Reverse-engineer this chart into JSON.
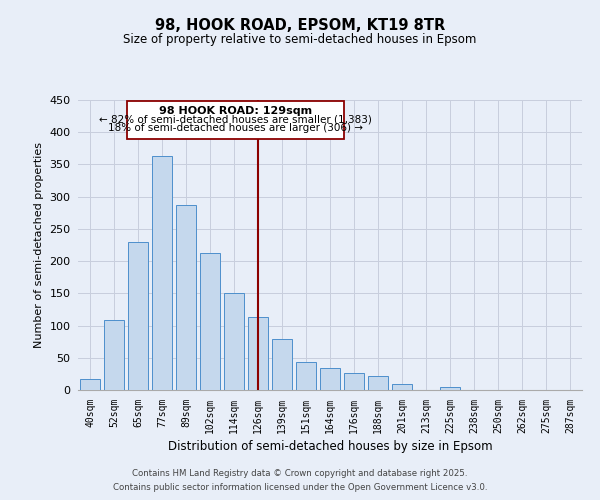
{
  "title": "98, HOOK ROAD, EPSOM, KT19 8TR",
  "subtitle": "Size of property relative to semi-detached houses in Epsom",
  "xlabel": "Distribution of semi-detached houses by size in Epsom",
  "ylabel": "Number of semi-detached properties",
  "bin_labels": [
    "40sqm",
    "52sqm",
    "65sqm",
    "77sqm",
    "89sqm",
    "102sqm",
    "114sqm",
    "126sqm",
    "139sqm",
    "151sqm",
    "164sqm",
    "176sqm",
    "188sqm",
    "201sqm",
    "213sqm",
    "225sqm",
    "238sqm",
    "250sqm",
    "262sqm",
    "275sqm",
    "287sqm"
  ],
  "bin_values": [
    17,
    108,
    230,
    363,
    287,
    213,
    150,
    113,
    79,
    44,
    34,
    27,
    21,
    9,
    0,
    5,
    0,
    0,
    0,
    0,
    0
  ],
  "bar_color": "#c5d8ed",
  "bar_edge_color": "#4d8fcc",
  "highlight_index": 7,
  "highlight_line_color": "#8b0000",
  "annotation_text_line1": "98 HOOK ROAD: 129sqm",
  "annotation_text_line2": "← 82% of semi-detached houses are smaller (1,383)",
  "annotation_text_line3": "18% of semi-detached houses are larger (306) →",
  "bg_color": "#e8eef8",
  "grid_color": "#c8cedd",
  "footer_line1": "Contains HM Land Registry data © Crown copyright and database right 2025.",
  "footer_line2": "Contains public sector information licensed under the Open Government Licence v3.0.",
  "ylim": [
    0,
    450
  ],
  "yticks": [
    0,
    50,
    100,
    150,
    200,
    250,
    300,
    350,
    400,
    450
  ]
}
